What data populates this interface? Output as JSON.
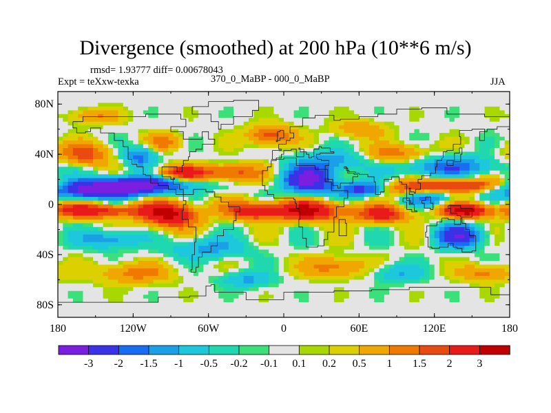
{
  "chart_data": {
    "type": "heatmap",
    "title": "Divergence (smoothed) at 200 hPa (10**6 m/s)",
    "stats_text": "rmsd= 1.93777 diff= 0.00678043",
    "experiment_text": "Expt = teXxw-texka",
    "comparison_text": "370_0_MaBP - 000_0_MaBP",
    "season": "JJA",
    "xlim": [
      -180,
      180
    ],
    "ylim": [
      -90,
      90
    ],
    "x_ticks": [
      {
        "value": -180,
        "label": "180"
      },
      {
        "value": -120,
        "label": "120W"
      },
      {
        "value": -60,
        "label": "60W"
      },
      {
        "value": 0,
        "label": "0"
      },
      {
        "value": 60,
        "label": "60E"
      },
      {
        "value": 120,
        "label": "120E"
      },
      {
        "value": 180,
        "label": "180"
      }
    ],
    "y_ticks": [
      {
        "value": 80,
        "label": "80N"
      },
      {
        "value": 40,
        "label": "40N"
      },
      {
        "value": 0,
        "label": "0"
      },
      {
        "value": -40,
        "label": "40S"
      },
      {
        "value": -80,
        "label": "80S"
      }
    ],
    "colorbar": {
      "levels": [
        -3,
        -2,
        -1.5,
        -1,
        -0.5,
        -0.2,
        -0.1,
        0.1,
        0.2,
        0.5,
        1,
        1.5,
        2,
        3
      ],
      "labels": [
        "-3",
        "-2",
        "-1.5",
        "-1",
        "-0.5",
        "-0.2",
        "-0.1",
        "0.1",
        "0.2",
        "0.5",
        "1",
        "1.5",
        "2",
        "3"
      ],
      "colors": [
        "#7a1ee0",
        "#3a32e6",
        "#1a6cf0",
        "#1aa0e6",
        "#1ec8dc",
        "#20d8b0",
        "#3ce07a",
        "#e4e4e4",
        "#a8d800",
        "#dcd000",
        "#f0a800",
        "#f07a00",
        "#e84a10",
        "#e81a1a",
        "#c00000"
      ]
    },
    "field_features": [
      {
        "lon": -150,
        "lat": 12,
        "value": -3.5,
        "lon_width": 40,
        "lat_width": 7
      },
      {
        "lon": -110,
        "lat": 16,
        "value": -2.5,
        "lon_width": 40,
        "lat_width": 7
      },
      {
        "lon": -150,
        "lat": -5,
        "value": 2.5,
        "lon_width": 40,
        "lat_width": 6
      },
      {
        "lon": -140,
        "lat": -28,
        "value": -1.5,
        "lon_width": 22,
        "lat_width": 7
      },
      {
        "lon": -80,
        "lat": 25,
        "value": 2.5,
        "lon_width": 22,
        "lat_width": 6
      },
      {
        "lon": -40,
        "lat": 25,
        "value": 1.8,
        "lon_width": 22,
        "lat_width": 7
      },
      {
        "lon": -90,
        "lat": -8,
        "value": 3.2,
        "lon_width": 22,
        "lat_width": 10
      },
      {
        "lon": -160,
        "lat": 40,
        "value": 1.8,
        "lon_width": 20,
        "lat_width": 9
      },
      {
        "lon": -115,
        "lat": 38,
        "value": -1.8,
        "lon_width": 12,
        "lat_width": 8
      },
      {
        "lon": -95,
        "lat": 50,
        "value": 1.2,
        "lon_width": 15,
        "lat_width": 7
      },
      {
        "lon": -10,
        "lat": 55,
        "value": 1.8,
        "lon_width": 18,
        "lat_width": 8
      },
      {
        "lon": 20,
        "lat": 20,
        "value": -3.4,
        "lon_width": 20,
        "lat_width": 11
      },
      {
        "lon": 40,
        "lat": 35,
        "value": -1.2,
        "lon_width": 25,
        "lat_width": 8
      },
      {
        "lon": -25,
        "lat": -5,
        "value": 2.5,
        "lon_width": 20,
        "lat_width": 7
      },
      {
        "lon": 20,
        "lat": -5,
        "value": 3.2,
        "lon_width": 30,
        "lat_width": 8
      },
      {
        "lon": 65,
        "lat": 12,
        "value": -2.5,
        "lon_width": 22,
        "lat_width": 6
      },
      {
        "lon": 90,
        "lat": 12,
        "value": 1.5,
        "lon_width": 20,
        "lat_width": 6
      },
      {
        "lon": 80,
        "lat": -8,
        "value": 2.2,
        "lon_width": 22,
        "lat_width": 7
      },
      {
        "lon": 115,
        "lat": 5,
        "value": -1.5,
        "lon_width": 20,
        "lat_width": 6
      },
      {
        "lon": 140,
        "lat": 15,
        "value": 2.4,
        "lon_width": 40,
        "lat_width": 6
      },
      {
        "lon": 130,
        "lat": 30,
        "value": -1.8,
        "lon_width": 40,
        "lat_width": 8
      },
      {
        "lon": 90,
        "lat": 40,
        "value": 1.3,
        "lon_width": 25,
        "lat_width": 8
      },
      {
        "lon": 145,
        "lat": -5,
        "value": 3.3,
        "lon_width": 18,
        "lat_width": 6
      },
      {
        "lon": 140,
        "lat": -25,
        "value": -2.8,
        "lon_width": 18,
        "lat_width": 9
      },
      {
        "lon": -60,
        "lat": -35,
        "value": -1.2,
        "lon_width": 30,
        "lat_width": 8
      },
      {
        "lon": 40,
        "lat": -50,
        "value": 1.3,
        "lon_width": 25,
        "lat_width": 8
      },
      {
        "lon": -120,
        "lat": -55,
        "value": 1.2,
        "lon_width": 30,
        "lat_width": 8
      },
      {
        "lon": 90,
        "lat": -55,
        "value": -1.0,
        "lon_width": 20,
        "lat_width": 7
      },
      {
        "lon": -30,
        "lat": -60,
        "value": -1.1,
        "lon_width": 20,
        "lat_width": 6
      },
      {
        "lon": 160,
        "lat": -55,
        "value": 1.2,
        "lon_width": 20,
        "lat_width": 7
      },
      {
        "lon": 60,
        "lat": 60,
        "value": 1.0,
        "lon_width": 20,
        "lat_width": 7
      },
      {
        "lon": -150,
        "lat": 70,
        "value": 1.0,
        "lon_width": 20,
        "lat_width": 6
      }
    ]
  }
}
